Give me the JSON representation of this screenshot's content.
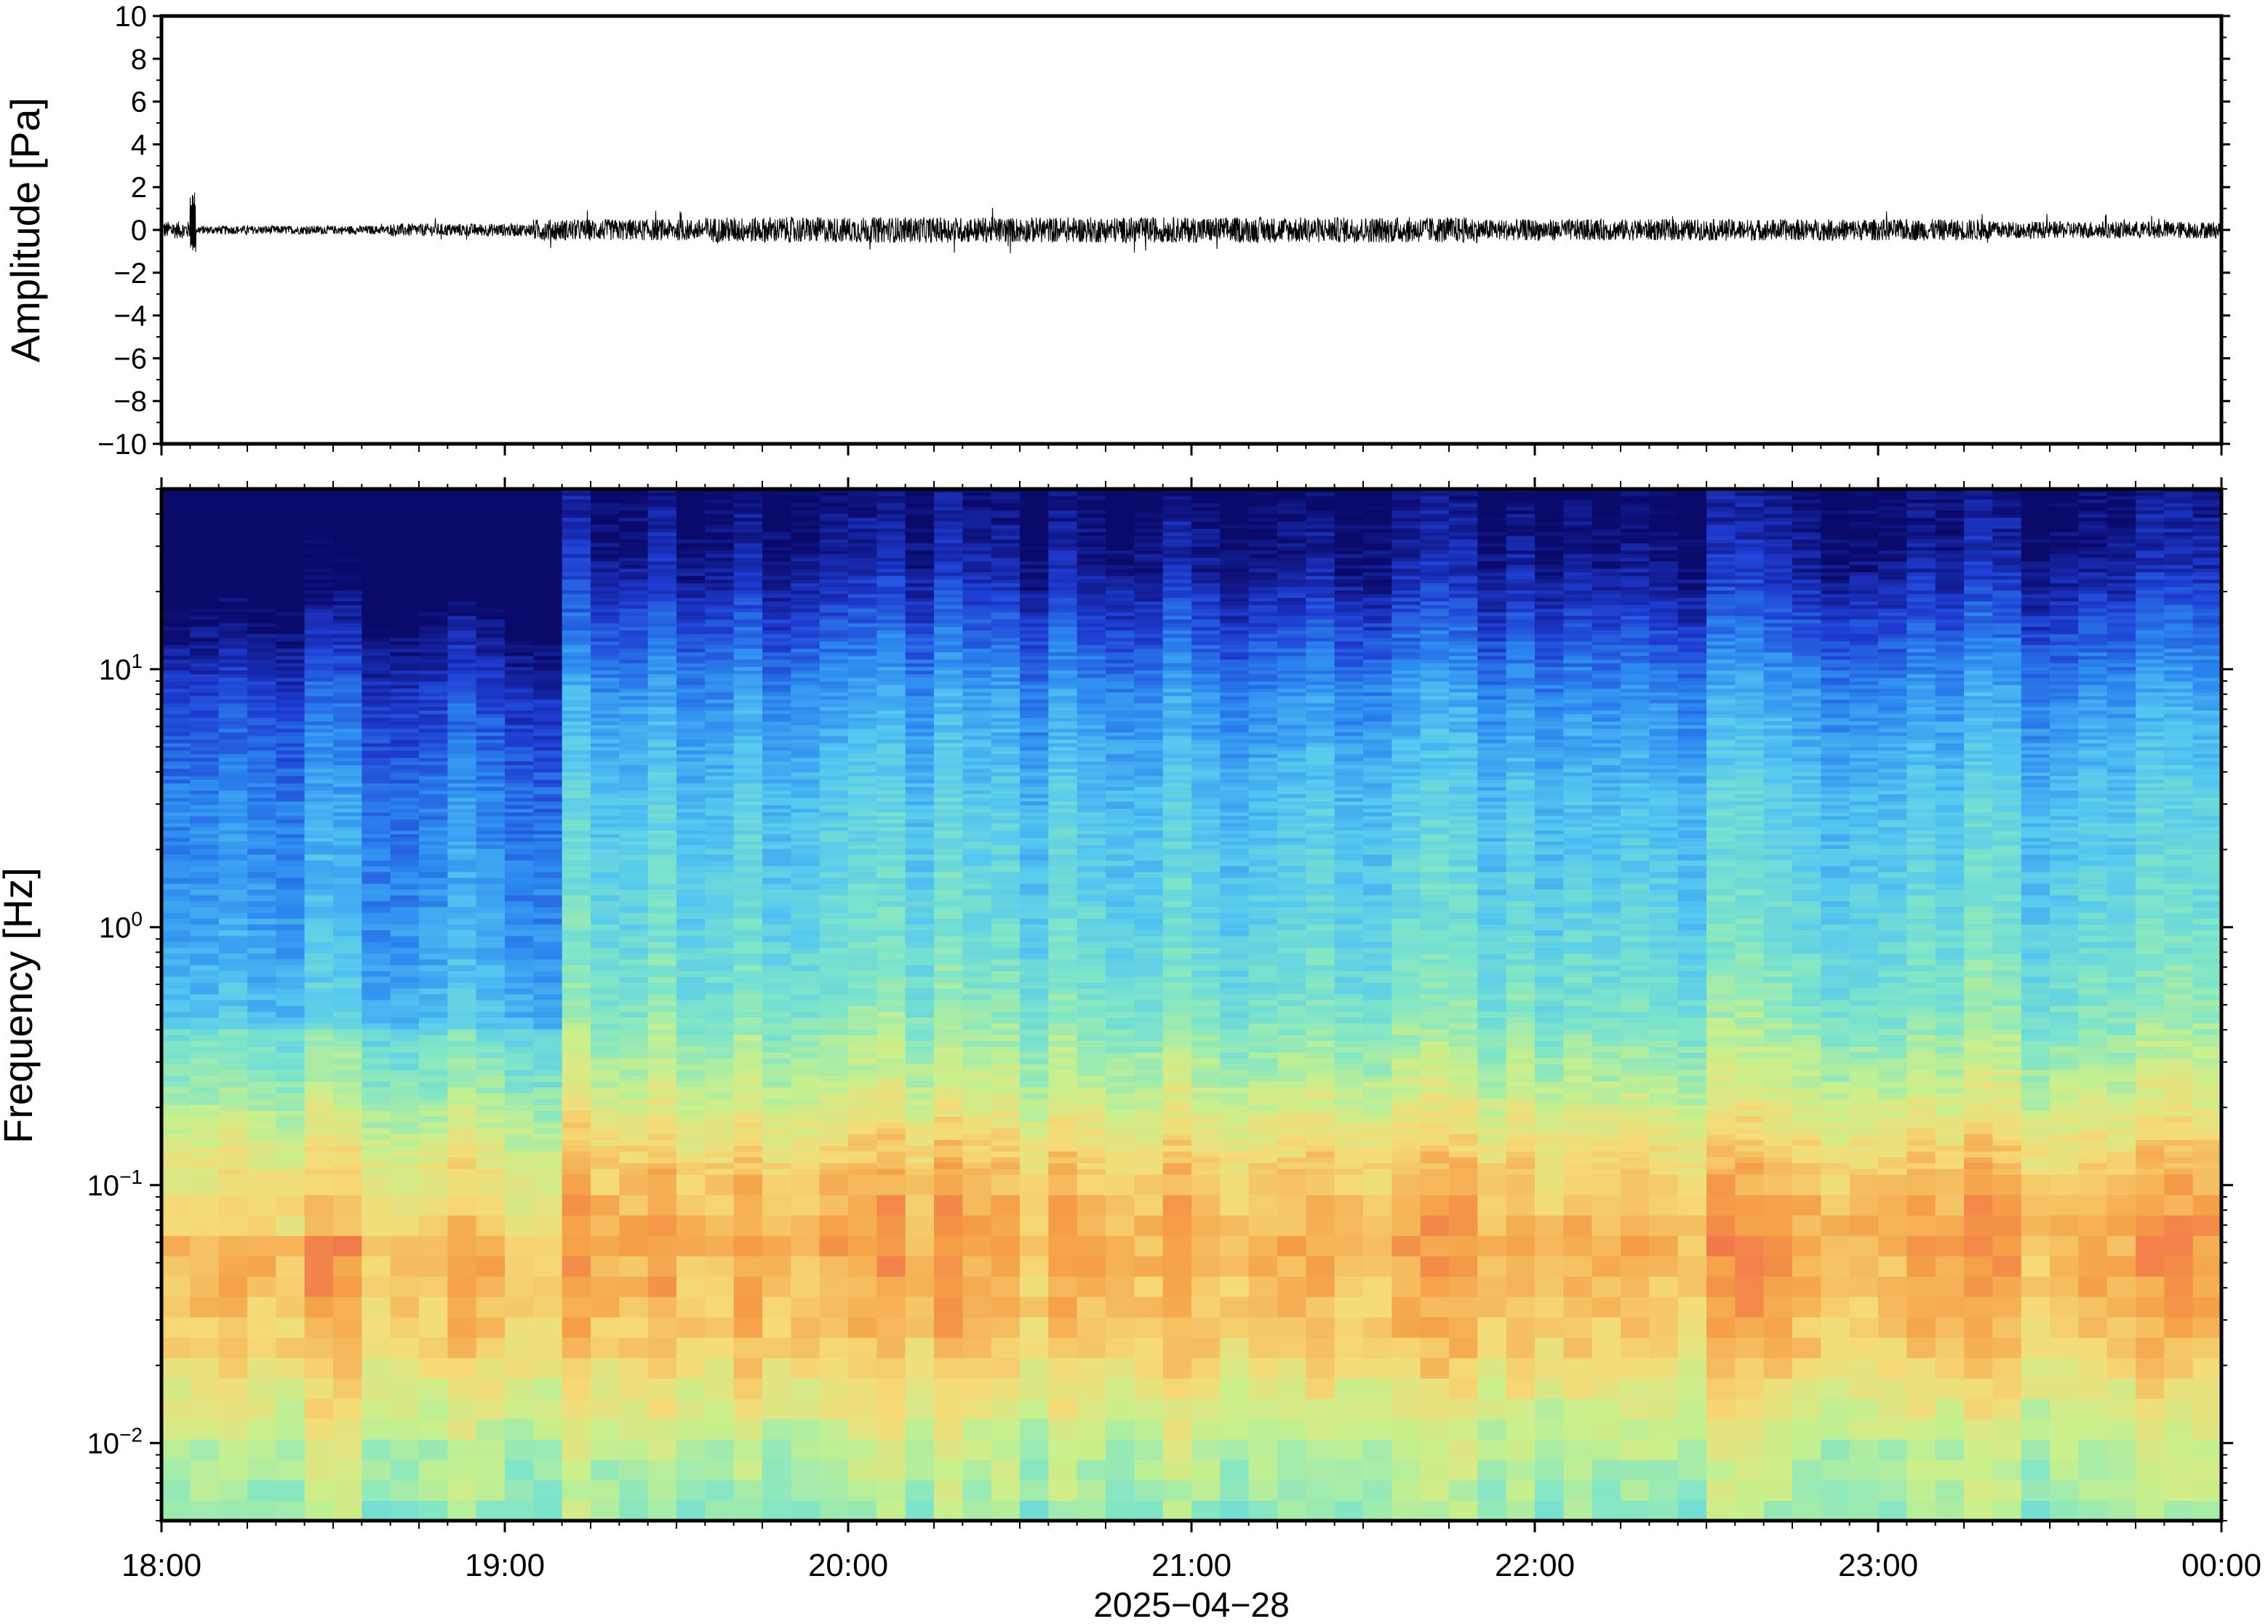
{
  "chart_data": [
    {
      "type": "line",
      "ylabel": "Amplitude [Pa]",
      "ylim": [
        -10,
        10
      ],
      "yticks": [
        10,
        8,
        6,
        4,
        2,
        0,
        -2,
        -4,
        -6,
        -8,
        -10
      ],
      "ytick_labels": [
        "10",
        "8",
        "6",
        "4",
        "2",
        "0",
        "−2",
        "−4",
        "−6",
        "−8",
        "−10"
      ],
      "x_range": [
        "2025-04-28 18:00",
        "2025-04-29 00:00"
      ],
      "series": [
        {
          "color": "#000000",
          "envelope_segments": [
            {
              "from": "18:00",
              "to": "18:05",
              "amplitude": 0.4
            },
            {
              "from": "18:05",
              "to": "18:06",
              "amplitude": 1.8,
              "note": "spike peak ≈ 1.8 Pa"
            },
            {
              "from": "18:06",
              "to": "18:40",
              "amplitude": 0.2
            },
            {
              "from": "18:40",
              "to": "19:05",
              "amplitude": 0.3
            },
            {
              "from": "19:05",
              "to": "19:35",
              "amplitude": 0.5
            },
            {
              "from": "19:35",
              "to": "20:30",
              "amplitude": 0.6
            },
            {
              "from": "20:30",
              "to": "21:50",
              "amplitude": 0.6
            },
            {
              "from": "21:50",
              "to": "23:20",
              "amplitude": 0.5
            },
            {
              "from": "23:20",
              "to": "00:00",
              "amplitude": 0.4
            }
          ]
        }
      ]
    },
    {
      "type": "heatmap",
      "ylabel": "Frequency [Hz]",
      "yscale": "log",
      "ylim": [
        0.005,
        50
      ],
      "yticks": [
        {
          "value": 10,
          "base": "10",
          "exp": "1"
        },
        {
          "value": 1,
          "base": "10",
          "exp": "0"
        },
        {
          "value": 0.1,
          "base": "10",
          "exp": "−1"
        },
        {
          "value": 0.01,
          "base": "10",
          "exp": "−2"
        }
      ],
      "x_range": [
        "2025-04-28 18:00",
        "2025-04-29 00:00"
      ],
      "xticks": [
        "18:00",
        "19:00",
        "20:00",
        "21:00",
        "22:00",
        "23:00",
        "00:00"
      ],
      "xlabel": "2025−04−28",
      "colormap": "rainbow (high=red, low=dark blue)",
      "colormap_stops": [
        "#0a0a6b",
        "#1e3cd2",
        "#2d8cf0",
        "#55c8f0",
        "#7fe6c8",
        "#c8f08c",
        "#f5dc78",
        "#f5a046",
        "#ee5a50"
      ],
      "description": "power highest (red/orange) around 0.02–0.2 Hz, cooling to green near 0.01 Hz and to dark blue above ~15 Hz; 18:00–19:08 noticeably quieter (bluer) above 0.5 Hz"
    }
  ]
}
